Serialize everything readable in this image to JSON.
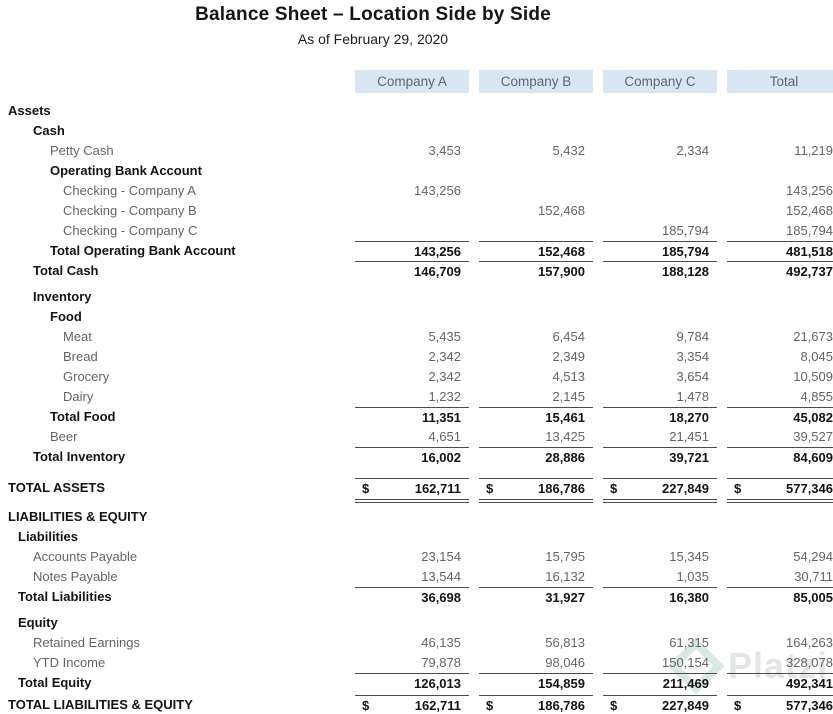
{
  "title": "Balance Sheet – Location Side by Side",
  "subtitle": "As of February 29, 2020",
  "currency_symbol": "$",
  "columns": [
    "Company A",
    "Company B",
    "Company C",
    "Total"
  ],
  "column_keys": [
    "company-a",
    "company-b",
    "company-c",
    "total"
  ],
  "colors": {
    "header_bg": "#d8e5f2",
    "header_text": "#5a6875",
    "item_text": "#646464",
    "bold_text": "#141414",
    "rule_line": "#4a4a4a",
    "watermark_green": "#b7d8c8",
    "watermark_gray": "#cdd0cd"
  },
  "watermark": {
    "text": "Platzi"
  },
  "rows": [
    {
      "type": "section",
      "indent": 0,
      "label": "Assets"
    },
    {
      "type": "section",
      "indent": 2,
      "label": "Cash"
    },
    {
      "type": "item",
      "indent": 3,
      "label": "Petty Cash",
      "values": [
        "3,453",
        "5,432",
        "2,334",
        "11,219"
      ]
    },
    {
      "type": "section",
      "indent": 3,
      "label": "Operating Bank Account"
    },
    {
      "type": "item",
      "indent": 4,
      "label": "Checking - Company A",
      "values": [
        "143,256",
        "",
        "",
        "143,256"
      ]
    },
    {
      "type": "item",
      "indent": 4,
      "label": "Checking - Company B",
      "values": [
        "",
        "152,468",
        "",
        "152,468"
      ]
    },
    {
      "type": "item",
      "indent": 4,
      "label": "Checking - Company C",
      "values": [
        "",
        "",
        "185,794",
        "185,794"
      ]
    },
    {
      "type": "total",
      "indent": 3,
      "label": "Total Operating Bank Account",
      "values": [
        "143,256",
        "152,468",
        "185,794",
        "481,518"
      ]
    },
    {
      "type": "total",
      "indent": 2,
      "label": "Total Cash",
      "values": [
        "146,709",
        "157,900",
        "188,128",
        "492,737"
      ]
    },
    {
      "type": "spacer",
      "size": "sm"
    },
    {
      "type": "section",
      "indent": 2,
      "label": "Inventory"
    },
    {
      "type": "section",
      "indent": 3,
      "label": "Food"
    },
    {
      "type": "item",
      "indent": 4,
      "label": "Meat",
      "values": [
        "5,435",
        "6,454",
        "9,784",
        "21,673"
      ]
    },
    {
      "type": "item",
      "indent": 4,
      "label": "Bread",
      "values": [
        "2,342",
        "2,349",
        "3,354",
        "8,045"
      ]
    },
    {
      "type": "item",
      "indent": 4,
      "label": "Grocery",
      "values": [
        "2,342",
        "4,513",
        "3,654",
        "10,509"
      ]
    },
    {
      "type": "item",
      "indent": 4,
      "label": "Dairy",
      "values": [
        "1,232",
        "2,145",
        "1,478",
        "4,855"
      ]
    },
    {
      "type": "total",
      "indent": 3,
      "label": "Total Food",
      "values": [
        "11,351",
        "15,461",
        "18,270",
        "45,082"
      ]
    },
    {
      "type": "item",
      "indent": 3,
      "label": "Beer",
      "values": [
        "4,651",
        "13,425",
        "21,451",
        "39,527"
      ]
    },
    {
      "type": "total",
      "indent": 2,
      "label": "Total Inventory",
      "values": [
        "16,002",
        "28,886",
        "39,721",
        "84,609"
      ]
    },
    {
      "type": "spacer",
      "size": "md"
    },
    {
      "type": "grand",
      "indent": 0,
      "label": "TOTAL ASSETS",
      "dollar": true,
      "values": [
        "162,711",
        "186,786",
        "227,849",
        "577,346"
      ]
    },
    {
      "type": "spacer",
      "size": "sm"
    },
    {
      "type": "section",
      "indent": 0,
      "label": "LIABILITIES & EQUITY"
    },
    {
      "type": "section",
      "indent": 1,
      "label": "Liabilities"
    },
    {
      "type": "item",
      "indent": 2,
      "label": "Accounts Payable",
      "values": [
        "23,154",
        "15,795",
        "15,345",
        "54,294"
      ]
    },
    {
      "type": "item",
      "indent": 2,
      "label": "Notes Payable",
      "values": [
        "13,544",
        "16,132",
        "1,035",
        "30,711"
      ]
    },
    {
      "type": "total",
      "indent": 1,
      "label": "Total Liabilities",
      "values": [
        "36,698",
        "31,927",
        "16,380",
        "85,005"
      ]
    },
    {
      "type": "spacer",
      "size": "sm"
    },
    {
      "type": "section",
      "indent": 1,
      "label": "Equity"
    },
    {
      "type": "item",
      "indent": 2,
      "label": "Retained Earnings",
      "values": [
        "46,135",
        "56,813",
        "61,315",
        "164,263"
      ]
    },
    {
      "type": "item",
      "indent": 2,
      "label": "YTD Income",
      "values": [
        "79,878",
        "98,046",
        "150,154",
        "328,078"
      ]
    },
    {
      "type": "total",
      "indent": 1,
      "label": "Total Equity",
      "values": [
        "126,013",
        "154,859",
        "211,469",
        "492,341"
      ]
    },
    {
      "type": "grand",
      "indent": 0,
      "label": "TOTAL LIABILITIES & EQUITY",
      "dollar": true,
      "values": [
        "162,711",
        "186,786",
        "227,849",
        "577,346"
      ]
    }
  ]
}
